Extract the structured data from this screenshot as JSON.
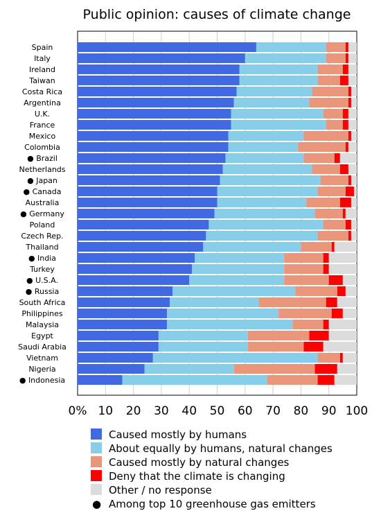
{
  "chart_data": {
    "type": "bar",
    "orientation": "horizontal",
    "stacked": true,
    "title": "Public opinion: causes of climate change",
    "xlim": [
      0,
      100
    ],
    "xticks": [
      "0%",
      "10",
      "20",
      "30",
      "40",
      "50",
      "60",
      "70",
      "80",
      "90",
      "100"
    ],
    "grid": true,
    "legend_position": "bottom",
    "top_emitter_marker": "●",
    "categories": [
      "Spain",
      "Italy",
      "Ireland",
      "Taiwan",
      "Costa Rica",
      "Argentina",
      "U.K.",
      "France",
      "Mexico",
      "Colombia",
      "Brazil",
      "Netherlands",
      "Japan",
      "Canada",
      "Australia",
      "Germany",
      "Poland",
      "Czech Rep.",
      "Thailand",
      "India",
      "Turkey",
      "U.S.A.",
      "Russia",
      "South Africa",
      "Philippines",
      "Malaysia",
      "Egypt",
      "Saudi Arabia",
      "Vietnam",
      "Nigeria",
      "Indonesia"
    ],
    "top_emitters": [
      false,
      false,
      false,
      false,
      false,
      false,
      false,
      false,
      false,
      false,
      true,
      false,
      true,
      true,
      false,
      true,
      false,
      false,
      false,
      true,
      false,
      true,
      true,
      false,
      false,
      false,
      false,
      false,
      false,
      false,
      true
    ],
    "series": [
      {
        "name": "Caused mostly by humans",
        "color": "#4169e1",
        "values": [
          64,
          60,
          58,
          58,
          57,
          56,
          55,
          55,
          54,
          54,
          53,
          52,
          51,
          50,
          50,
          49,
          47,
          46,
          45,
          42,
          41,
          40,
          34,
          33,
          32,
          32,
          29,
          29,
          27,
          24,
          16
        ]
      },
      {
        "name": "About equally by humans, natural changes",
        "color": "#87ceeb",
        "values": [
          25,
          29,
          28,
          28,
          27,
          27,
          33,
          34,
          27,
          25,
          28,
          32,
          36,
          36,
          32,
          36,
          41,
          40,
          35,
          32,
          33,
          34,
          44,
          32,
          40,
          45,
          32,
          32,
          59,
          32,
          52
        ]
      },
      {
        "name": "Caused mostly by natural changes",
        "color": "#e9967a",
        "values": [
          7,
          7,
          9,
          8,
          13,
          14,
          7,
          6,
          16,
          17,
          11,
          10,
          10,
          10,
          12,
          10,
          8,
          11,
          11,
          14,
          14,
          16,
          15,
          24,
          19,
          11,
          22,
          20,
          8,
          29,
          18
        ]
      },
      {
        "name": "Deny that the climate is changing",
        "color": "#ff0000",
        "values": [
          1,
          1,
          2,
          3,
          1,
          1,
          2,
          2,
          1,
          1,
          2,
          3,
          1,
          3,
          4,
          1,
          2,
          1,
          1,
          2,
          2,
          5,
          3,
          4,
          4,
          2,
          7,
          7,
          1,
          8,
          6
        ]
      },
      {
        "name": "Other / no response",
        "color": "#dcdcdc",
        "values": [
          3,
          3,
          3,
          3,
          2,
          2,
          3,
          3,
          2,
          3,
          6,
          3,
          2,
          1,
          2,
          4,
          2,
          2,
          8,
          10,
          10,
          5,
          4,
          7,
          5,
          10,
          10,
          12,
          5,
          7,
          8
        ]
      }
    ],
    "legend_extra": "Among top 10 greenhouse gas emitters"
  }
}
